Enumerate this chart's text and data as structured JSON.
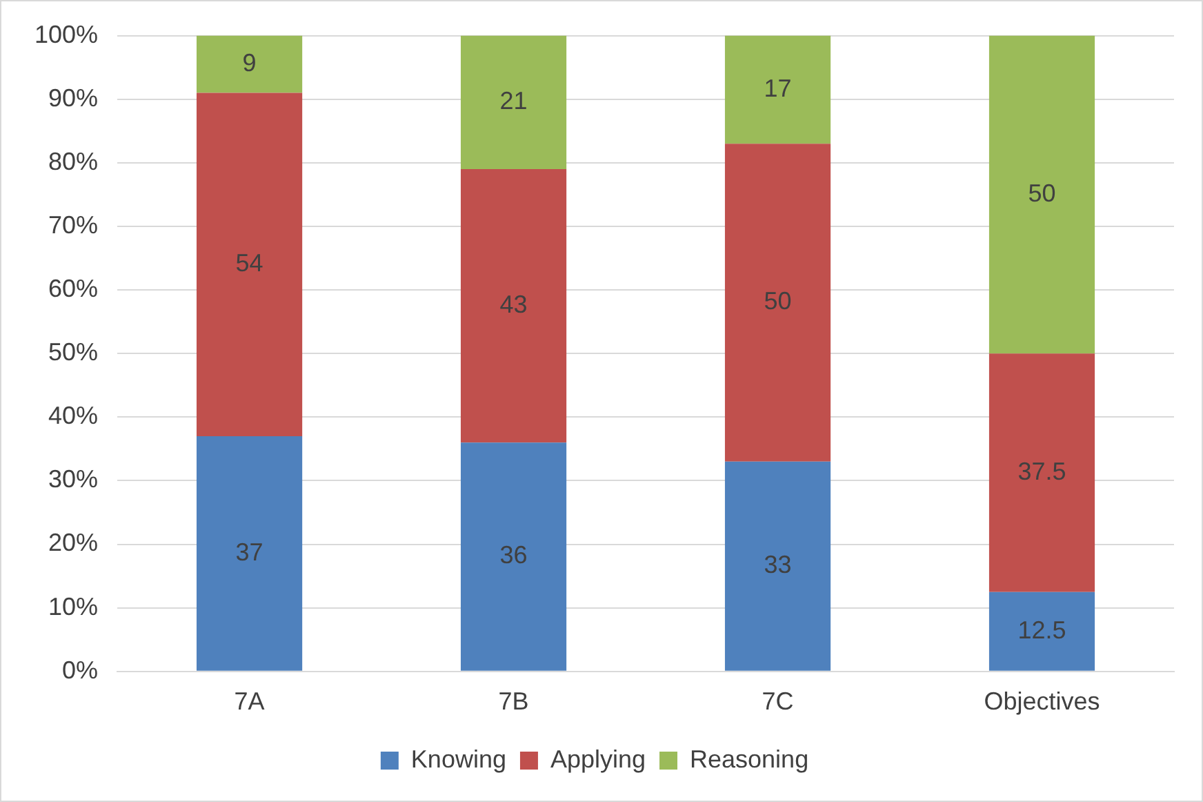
{
  "chart_data": {
    "type": "bar",
    "stacked": true,
    "categories": [
      "7A",
      "7B",
      "7C",
      "Objectives"
    ],
    "series": [
      {
        "name": "Knowing",
        "color": "#4f81bd",
        "values": [
          37,
          36,
          33,
          12.5
        ]
      },
      {
        "name": "Applying",
        "color": "#c0504d",
        "values": [
          54,
          43,
          50,
          37.5
        ]
      },
      {
        "name": "Reasoning",
        "color": "#9bbb59",
        "values": [
          9,
          21,
          17,
          50
        ]
      }
    ],
    "ylim": [
      0,
      100
    ],
    "yticks": [
      {
        "value": 0,
        "label": "0%"
      },
      {
        "value": 10,
        "label": "10%"
      },
      {
        "value": 20,
        "label": "20%"
      },
      {
        "value": 30,
        "label": "30%"
      },
      {
        "value": 40,
        "label": "40%"
      },
      {
        "value": 50,
        "label": "50%"
      },
      {
        "value": 60,
        "label": "60%"
      },
      {
        "value": 70,
        "label": "70%"
      },
      {
        "value": 80,
        "label": "80%"
      },
      {
        "value": 90,
        "label": "90%"
      },
      {
        "value": 100,
        "label": "100%"
      }
    ],
    "grid": "y",
    "legend": "bottom",
    "data_labels": true
  }
}
